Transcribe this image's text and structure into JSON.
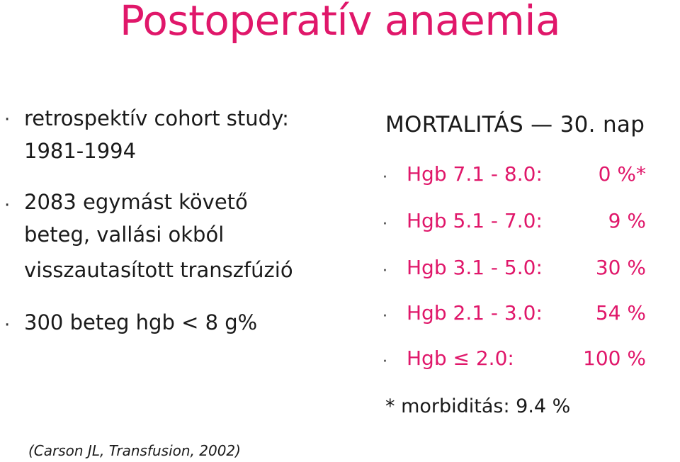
{
  "title": "Postoperatív anaemia",
  "left_bullets": [
    {
      "lines": [
        "retrospektív cohort study:",
        "1981-1994"
      ]
    },
    {
      "lines": [
        "2083 egymást követő",
        "beteg, vallási okból",
        "visszautasított transzfúzió"
      ]
    },
    {
      "lines": [
        "300 beteg hgb < 8 g%"
      ]
    }
  ],
  "bullet_char": "·",
  "mortality": {
    "heading": "MORTALITÁS — 30. nap",
    "rows": [
      {
        "label": "Hgb 7.1 - 8.0:",
        "value": "0 %*"
      },
      {
        "label": "Hgb 5.1 - 7.0:",
        "value": "9 %"
      },
      {
        "label": "Hgb 3.1 - 5.0:",
        "value": "30 %"
      },
      {
        "label": "Hgb 2.1 - 3.0:",
        "value": "54 %"
      },
      {
        "label": "Hgb ≤ 2.0:",
        "value": "100 %"
      }
    ]
  },
  "footnote": "* morbiditás: 9.4 %",
  "citation": "(Carson JL, Transfusion, 2002)",
  "colors": {
    "accent": "#e0176a",
    "text": "#1a1a1a"
  }
}
